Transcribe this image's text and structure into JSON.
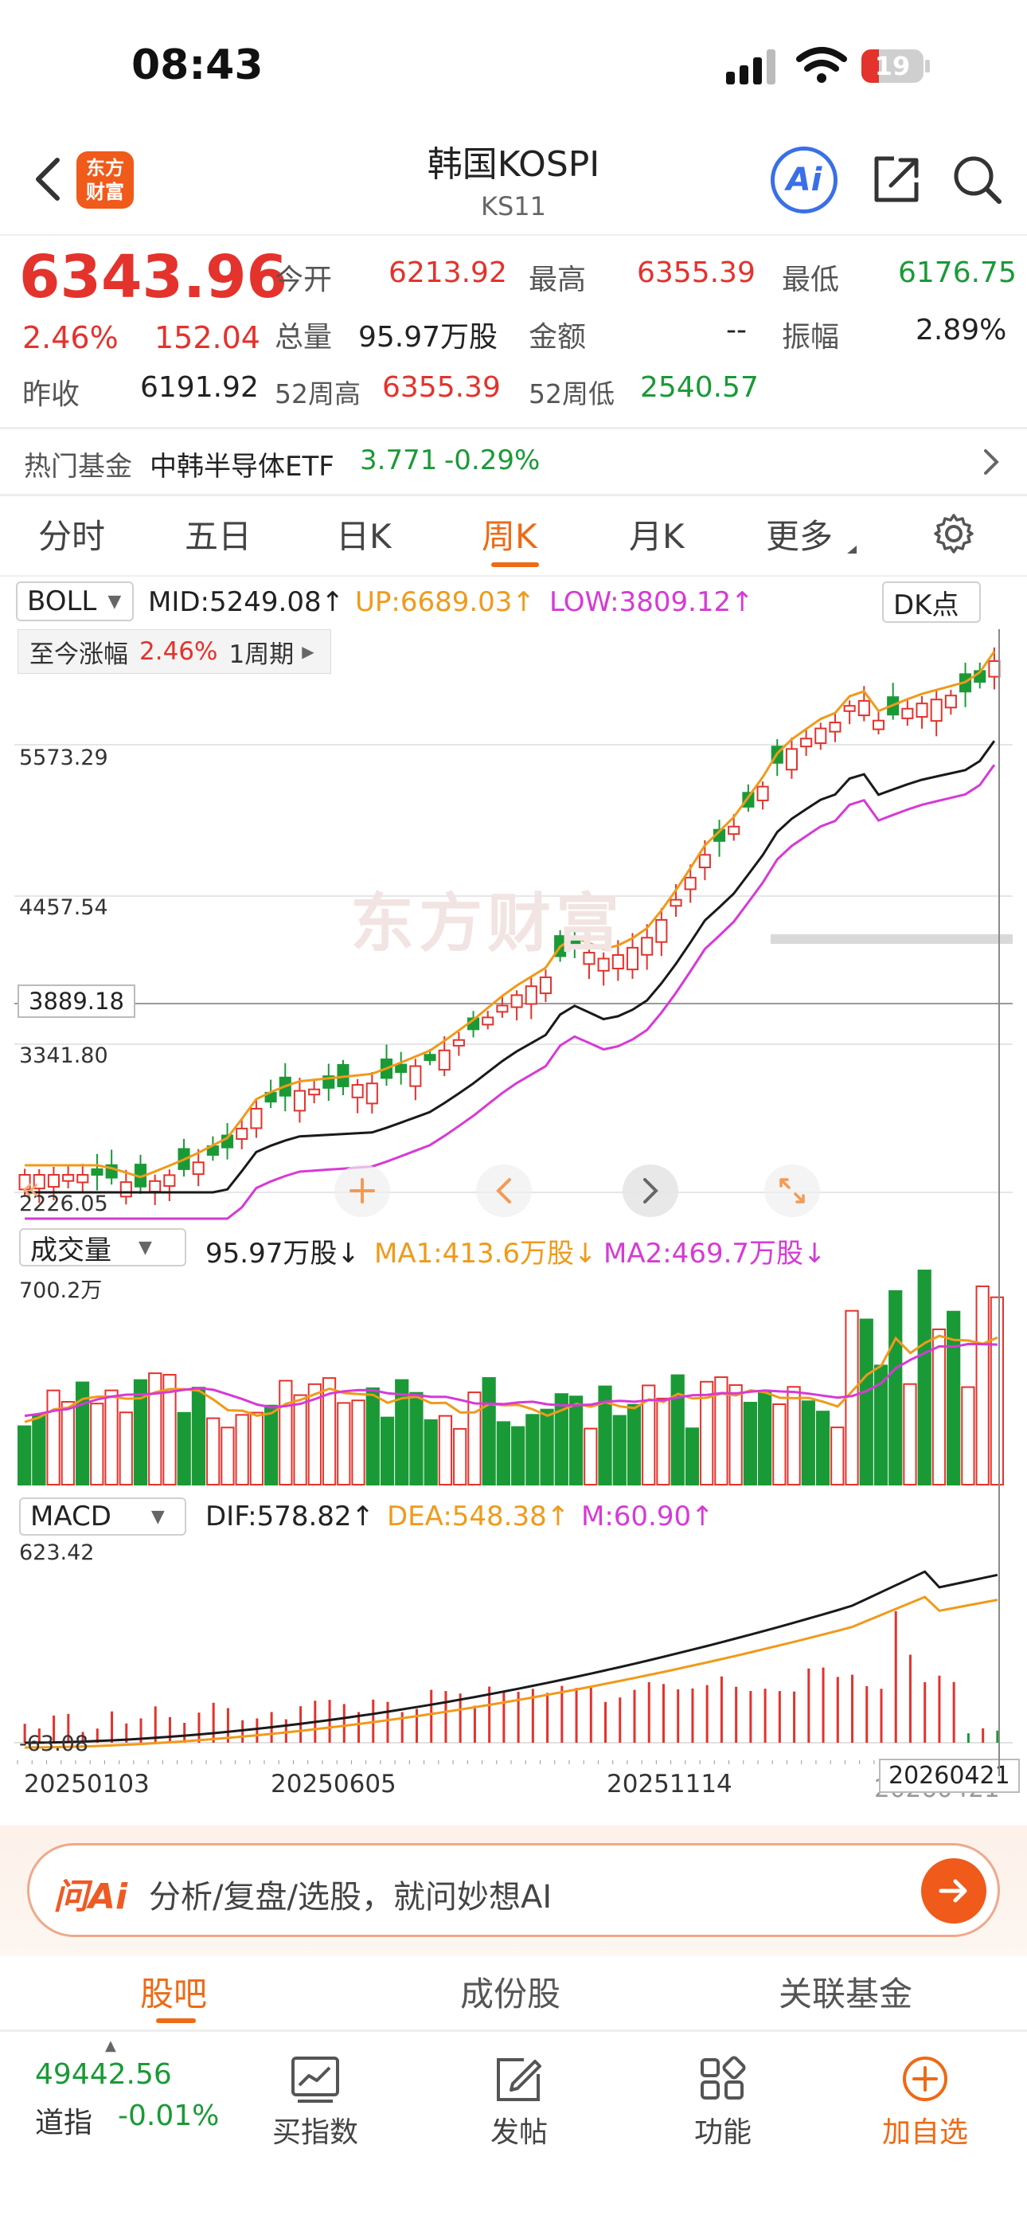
{
  "status_bar": {
    "time": "08:43",
    "battery": "19"
  },
  "header": {
    "logo_text": "东方\n财富",
    "title": "韩国KOSPI",
    "code": "KS11",
    "ai_label": "Ai"
  },
  "quote": {
    "price": "6343.96",
    "change_pct": "2.46%",
    "change": "152.04",
    "prev_close_label": "昨收",
    "prev_close": "6191.92",
    "open_label": "今开",
    "open": "6213.92",
    "high_label": "最高",
    "high": "6355.39",
    "low_label": "最低",
    "low": "6176.75",
    "volume_label": "总量",
    "volume": "95.97万股",
    "amount_label": "金额",
    "amount": "--",
    "amplitude_label": "振幅",
    "amplitude": "2.89%",
    "w52_high_label": "52周高",
    "w52_high": "6355.39",
    "w52_low_label": "52周低",
    "w52_low": "2540.57"
  },
  "hot_fund": {
    "label": "热门基金",
    "name": "中韩半导体ETF",
    "price": "3.771",
    "change": "-0.29%"
  },
  "period_tabs": [
    "分时",
    "五日",
    "日K",
    "周K",
    "月K",
    "更多"
  ],
  "active_tab": "周K",
  "boll": {
    "selector": "BOLL",
    "mid": "MID:5249.08↑",
    "up": "UP:6689.03↑",
    "low": "LOW:3809.12↑",
    "dk": "DK点"
  },
  "period_info": {
    "label": "至今涨幅",
    "pct": "2.46%",
    "period": "1周期"
  },
  "price_axis": [
    "5573.29",
    "4457.54",
    "3341.80",
    "2226.05"
  ],
  "crosshair_price": "3889.18",
  "watermark": "东方财富",
  "volume_panel": {
    "selector": "成交量",
    "value": "95.97万股↓",
    "ma1": "MA1:413.6万股↓",
    "ma2": "MA2:469.7万股↓",
    "axis_max": "700.2万"
  },
  "macd_panel": {
    "selector": "MACD",
    "dif": "DIF:578.82↑",
    "dea": "DEA:548.38↑",
    "m": "M:60.90↑",
    "axis_max": "623.42",
    "axis_min": "-63.08"
  },
  "date_axis": [
    "20250103",
    "20250605",
    "20251114",
    "20260421"
  ],
  "cursor_date": "20260421",
  "ai_bar": {
    "logo": "问Ai",
    "placeholder": "分析/复盘/选股，就问妙想AI"
  },
  "bottom_tabs": [
    "股吧",
    "成份股",
    "关联基金"
  ],
  "bottom_nav": {
    "index_value": "49442.56",
    "index_name": "道指",
    "index_change": "-0.01%",
    "items": [
      "买指数",
      "发帖",
      "功能",
      "加自选"
    ]
  },
  "colors": {
    "up": "#e4322c",
    "down": "#1a9a36",
    "accent": "#ee6a15",
    "mid": "#1a1a1a",
    "upper": "#f09a1a",
    "lower": "#d63ad6"
  }
}
